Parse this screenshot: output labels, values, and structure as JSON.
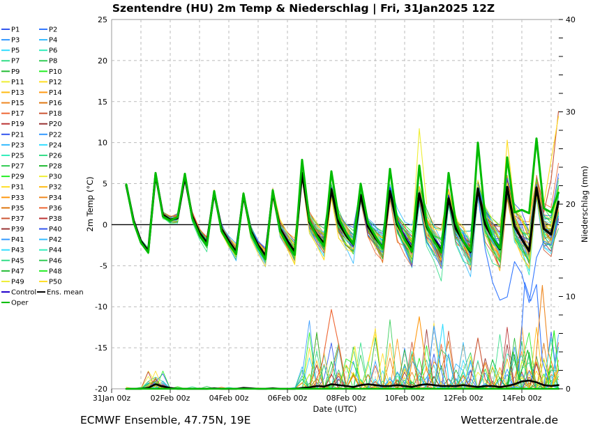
{
  "title": "Szentendre  (HU)  2m Temp & Niederschlag | Fri, 31Jan2025 12Z",
  "footer_left": "ECMWF Ensemble, 47.75N, 19E",
  "footer_right": "Wetterzentrale.de",
  "legend": {
    "member_labels": [
      "P1",
      "P2",
      "P3",
      "P4",
      "P5",
      "P6",
      "P7",
      "P8",
      "P9",
      "P10",
      "P11",
      "P12",
      "P13",
      "P14",
      "P15",
      "P16",
      "P17",
      "P18",
      "P19",
      "P20",
      "P21",
      "P22",
      "P23",
      "P24",
      "P25",
      "P26",
      "P27",
      "P28",
      "P29",
      "P30",
      "P31",
      "P32",
      "P33",
      "P34",
      "P35",
      "P36",
      "P37",
      "P38",
      "P39",
      "P40",
      "P41",
      "P42",
      "P43",
      "P44",
      "P45",
      "P46",
      "P47",
      "P48",
      "P49",
      "P50"
    ],
    "control_label": "Control",
    "ens_mean_label": "Ens. mean",
    "oper_label": "Oper",
    "control_color": "#2200cc",
    "ens_mean_color": "#000000",
    "oper_color": "#00bb00"
  },
  "chart_data": {
    "type": "line",
    "title": "Szentendre  (HU)  2m Temp & Niederschlag | Fri, 31Jan2025 12Z",
    "x_axis": {
      "label": "Date (UTC)",
      "tick_labels": [
        "31Jan 00z",
        "02Feb 00z",
        "04Feb 00z",
        "06Feb 00z",
        "08Feb 00z",
        "10Feb 00z",
        "12Feb 00z",
        "14Feb 00z"
      ],
      "tick_days": [
        0,
        2,
        4,
        6,
        8,
        10,
        12,
        14
      ],
      "range_days": [
        0,
        15.26
      ],
      "grid_interval_days": 1
    },
    "y_left": {
      "label": "2m Temp (°C)",
      "min": -20,
      "max": 25,
      "tick_interval": 5,
      "tick_values": [
        25,
        20,
        15,
        10,
        5,
        0,
        -5,
        -10,
        -15,
        -20
      ],
      "zero_line": true,
      "grid": "dashed"
    },
    "y_right": {
      "label": "Niederschlag (mm)",
      "min": 0,
      "max": 40,
      "tick_interval": 10,
      "tick_values": [
        0,
        10,
        20,
        30,
        40
      ],
      "minor_tick_interval": 2
    },
    "time": {
      "start_day": 0.5,
      "step_days": 0.25,
      "count": 60
    },
    "palette20": [
      "#3355ee",
      "#3377ff",
      "#3399ff",
      "#33bbff",
      "#33ddff",
      "#33eebb",
      "#33dd88",
      "#33cc55",
      "#22bb33",
      "#22ee22",
      "#eeee33",
      "#ffdd22",
      "#ffbb11",
      "#ff9911",
      "#ee8822",
      "#dd7711",
      "#ee6633",
      "#cc5533",
      "#bb3333",
      "#993333"
    ],
    "series": {
      "ens_mean_temp": [
        4.8,
        0.5,
        -2,
        -3.2,
        6.1,
        1.2,
        0.6,
        0.8,
        5.8,
        1,
        -1,
        -2.2,
        3.9,
        -0.5,
        -2,
        -3.3,
        3.6,
        -0.8,
        -2.5,
        -3.8,
        3.9,
        -0.5,
        -2,
        -3.3,
        6.3,
        0.3,
        -1.2,
        -2.3,
        4.3,
        0.2,
        -1.3,
        -2.4,
        3.6,
        -0.2,
        -1.6,
        -2.8,
        4.1,
        0,
        -1.6,
        -3,
        3.8,
        -0.2,
        -1.8,
        -3.2,
        3.2,
        -0.5,
        -2,
        -3.3,
        4.4,
        0,
        -1.6,
        -3,
        4.6,
        -0.2,
        -1.8,
        -3.2,
        4.5,
        -0.5,
        -1.2,
        2.8
      ],
      "oper_temp": [
        4.9,
        0.3,
        -2.2,
        -3.4,
        6.3,
        1,
        0.5,
        0.9,
        6.2,
        0.8,
        -1.3,
        -2.5,
        4.1,
        -0.8,
        -2.3,
        -3.6,
        3.8,
        -1,
        -2.8,
        -4.2,
        4.2,
        -0.8,
        -2.4,
        -3.7,
        7.9,
        0.5,
        -1.4,
        -2.6,
        6.5,
        0.8,
        -1,
        -2.4,
        5.0,
        0.2,
        -1.4,
        -2.9,
        6.8,
        0.3,
        -1.8,
        -3.3,
        7.2,
        0,
        -2,
        -3.4,
        6.3,
        0.2,
        -2,
        -3.2,
        10.0,
        0.8,
        -1.6,
        -2.9,
        8.2,
        1.5,
        1.8,
        1.4,
        10.5,
        2,
        1.5,
        3.9
      ],
      "ens_mean_precip": [
        0,
        0,
        0,
        0.1,
        0.5,
        0.25,
        0.1,
        0,
        0,
        0,
        0,
        0,
        0.05,
        0,
        0,
        0,
        0.1,
        0.05,
        0,
        0,
        0.05,
        0,
        0,
        0,
        0.1,
        0.15,
        0.3,
        0.25,
        0.5,
        0.4,
        0.3,
        0.2,
        0.4,
        0.5,
        0.4,
        0.3,
        0.3,
        0.4,
        0.3,
        0.2,
        0.4,
        0.5,
        0.4,
        0.3,
        0.3,
        0.3,
        0.4,
        0.3,
        0.2,
        0.3,
        0.3,
        0.2,
        0.3,
        0.5,
        0.8,
        0.9,
        0.7,
        0.4,
        0.3,
        0.4
      ],
      "oper_precip_constant": 0,
      "member_temp_model": {
        "walk_decay": 0.82,
        "walk_step": 0.9,
        "spread_base": 0.12,
        "spread_per_step": 0.022,
        "phase_peak": 0.55,
        "phase_trough": 1.25,
        "seed": 41
      },
      "member_precip_model": {
        "early_event_days": [
          1.25,
          1.8
        ],
        "active_after_day": 6.3,
        "seed": 97
      },
      "temp_outlier_segments": [
        {
          "color_index": 17,
          "points": [
            [
              14.5,
              6
            ],
            [
              14.75,
              1.5
            ],
            [
              15,
              5.5
            ],
            [
              15.25,
              13.8
            ]
          ]
        },
        {
          "color_index": 10,
          "points": [
            [
              10.25,
              -2
            ],
            [
              10.5,
              11.7
            ],
            [
              10.75,
              2.5
            ]
          ]
        },
        {
          "color_index": 11,
          "points": [
            [
              13.25,
              -2.5
            ],
            [
              13.5,
              10.3
            ],
            [
              13.75,
              2
            ],
            [
              14.25,
              -1
            ],
            [
              14.5,
              10.2
            ],
            [
              14.75,
              2.5
            ],
            [
              15.25,
              13.2
            ]
          ]
        },
        {
          "color_index": 1,
          "points": [
            [
              12,
              -1
            ],
            [
              12.25,
              -4
            ],
            [
              12.5,
              3.5
            ],
            [
              12.75,
              -3
            ],
            [
              13,
              -7
            ],
            [
              13.25,
              -9.2
            ],
            [
              13.5,
              -8.8
            ],
            [
              13.75,
              -4.5
            ],
            [
              14,
              -6
            ],
            [
              14.25,
              -9.5
            ],
            [
              14.5,
              -4
            ],
            [
              14.75,
              -2
            ],
            [
              15,
              -2.5
            ],
            [
              15.25,
              1
            ]
          ]
        }
      ],
      "precip_outlier_segments": [
        {
          "color_index": 16,
          "points": [
            [
              6.9,
              0
            ],
            [
              7.2,
              3
            ],
            [
              7.5,
              8.6
            ],
            [
              7.8,
              4
            ],
            [
              8.0,
              0.5
            ]
          ]
        },
        {
          "color_index": 13,
          "points": [
            [
              10.1,
              0
            ],
            [
              10.35,
              5
            ],
            [
              10.5,
              7.8
            ],
            [
              10.75,
              2
            ],
            [
              11,
              0.3
            ]
          ]
        },
        {
          "color_index": 2,
          "points": [
            [
              10.75,
              0.3
            ],
            [
              11.0,
              6.8
            ],
            [
              11.25,
              2
            ],
            [
              11.4,
              0
            ]
          ]
        },
        {
          "color_index": 4,
          "points": [
            [
              11.0,
              0.2
            ],
            [
              11.3,
              7
            ],
            [
              11.5,
              1
            ],
            [
              11.7,
              0.2
            ]
          ]
        },
        {
          "color_index": 17,
          "points": [
            [
              12.2,
              0.2
            ],
            [
              12.5,
              5.5
            ],
            [
              12.75,
              1
            ],
            [
              13,
              0.2
            ]
          ]
        },
        {
          "color_index": 10,
          "points": [
            [
              8.0,
              0.2
            ],
            [
              8.3,
              4.6
            ],
            [
              8.5,
              0.5
            ]
          ]
        },
        {
          "color_index": 1,
          "points": [
            [
              13.9,
              2
            ],
            [
              14.1,
              11.5
            ],
            [
              14.3,
              9.5
            ],
            [
              14.5,
              11.3
            ],
            [
              14.7,
              3
            ],
            [
              14.9,
              1
            ]
          ]
        },
        {
          "color_index": 14,
          "points": [
            [
              14.4,
              0.5
            ],
            [
              14.7,
              11.2
            ],
            [
              14.9,
              4
            ],
            [
              15.1,
              2
            ]
          ]
        },
        {
          "color_index": 8,
          "points": [
            [
              13.5,
              0.5
            ],
            [
              13.7,
              4
            ],
            [
              13.9,
              1
            ],
            [
              14.2,
              4.2
            ],
            [
              14.4,
              1
            ]
          ]
        },
        {
          "color_index": 9,
          "points": [
            [
              14.9,
              0.5
            ],
            [
              15.1,
              6.3
            ],
            [
              15.25,
              2
            ]
          ]
        },
        {
          "color_index": 4,
          "points": [
            [
              15.0,
              0.3
            ],
            [
              15.25,
              4.5
            ]
          ]
        }
      ]
    },
    "members": {
      "count": 50
    },
    "colors": {
      "grid": "#bbbbbb",
      "frame": "#999999",
      "zero_line": "#000000",
      "ens_mean": "#000000",
      "oper": "#00bb00",
      "control": "#2200cc"
    }
  }
}
